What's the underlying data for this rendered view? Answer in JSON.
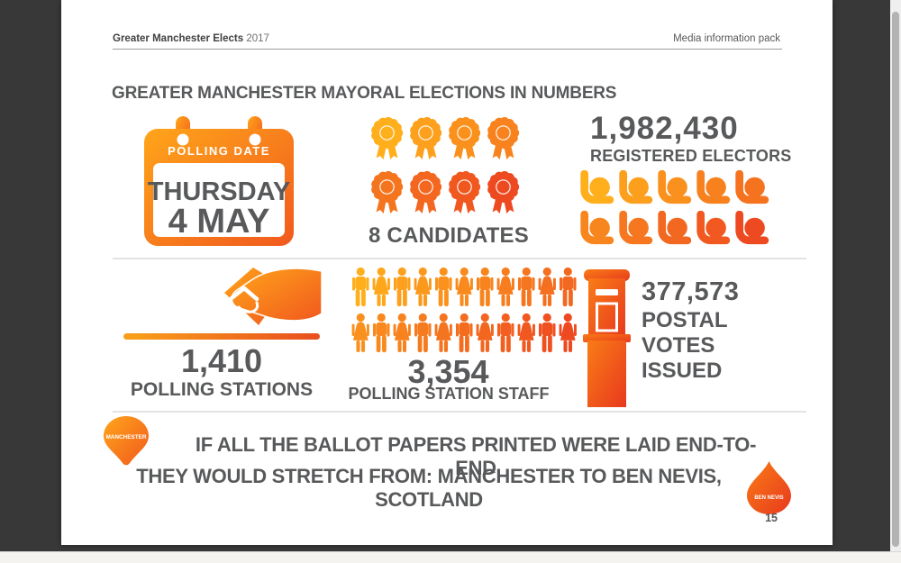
{
  "header": {
    "brand": "Greater Manchester Elects",
    "year": "2017",
    "right": "Media information pack"
  },
  "title": "GREATER MANCHESTER MAYORAL ELECTIONS IN NUMBERS",
  "calendar": {
    "header": "POLLING DATE",
    "day": "THURSDAY",
    "date": "4 MAY"
  },
  "candidates": {
    "label": "8 CANDIDATES",
    "count": 8
  },
  "electors": {
    "value": "1,982,430",
    "label": "REGISTERED ELECTORS",
    "count": 10,
    "per_row": 5
  },
  "stations": {
    "value": "1,410",
    "label": "POLLING STATIONS"
  },
  "staff": {
    "value": "3,354",
    "label": "POLLING STATION STAFF",
    "rows": [
      11,
      11
    ]
  },
  "postal": {
    "value": "377,573",
    "lines": [
      "POSTAL",
      "VOTES",
      "ISSUED"
    ]
  },
  "fact": {
    "line1": "IF ALL THE BALLOT PAPERS PRINTED WERE LAID END-TO-END",
    "line2": "THEY WOULD STRETCH FROM: MANCHESTER TO BEN NEVIS, SCOTLAND",
    "start": "MANCHESTER",
    "end": "BEN NEVIS"
  },
  "page_number": "15",
  "colors": {
    "orange_light": "#FFAE1C",
    "orange_mid": "#F4721C",
    "orange_dark": "#EE4A21",
    "red_end": "#D92B21",
    "text": "#58595B"
  },
  "icons": {
    "calendar": "calendar-icon",
    "rosette": "rosette-icon",
    "elector": "person-icon",
    "ballot_hand": "hand-ballot-icon",
    "staff_male": "male-figure-icon",
    "staff_female": "female-figure-icon",
    "postbox": "postbox-icon",
    "route_start": "location-balloon-icon",
    "route_end": "droplet-icon"
  }
}
